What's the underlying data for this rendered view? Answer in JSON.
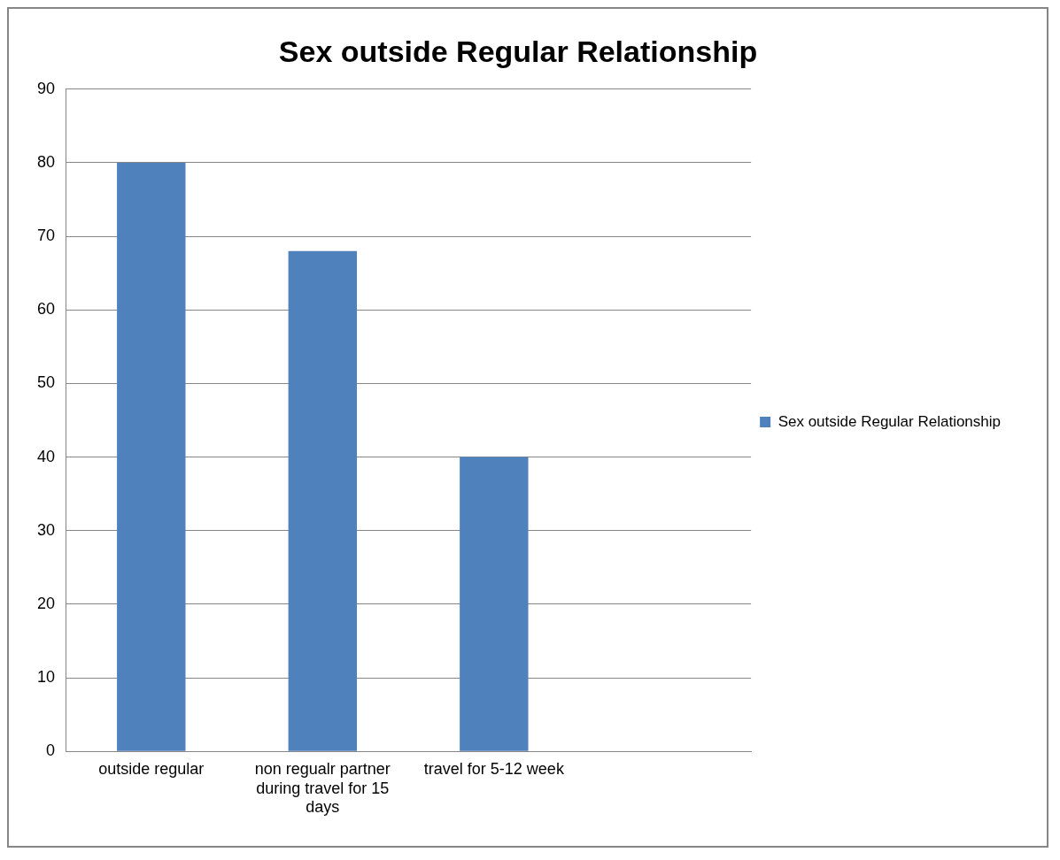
{
  "chart_data": {
    "type": "bar",
    "title": "Sex outside Regular Relationship",
    "categories": [
      "outside regular",
      "non regualr partner during travel for 15 days",
      "travel for 5-12 week",
      null
    ],
    "series": [
      {
        "name": "Sex outside Regular Relationship",
        "color": "#4f81bd",
        "values": [
          80,
          68,
          40,
          null
        ]
      }
    ],
    "ylim": [
      0,
      90
    ],
    "yticks": [
      0,
      10,
      20,
      30,
      40,
      50,
      60,
      70,
      80,
      90
    ],
    "grid": "y",
    "legend": "right"
  }
}
